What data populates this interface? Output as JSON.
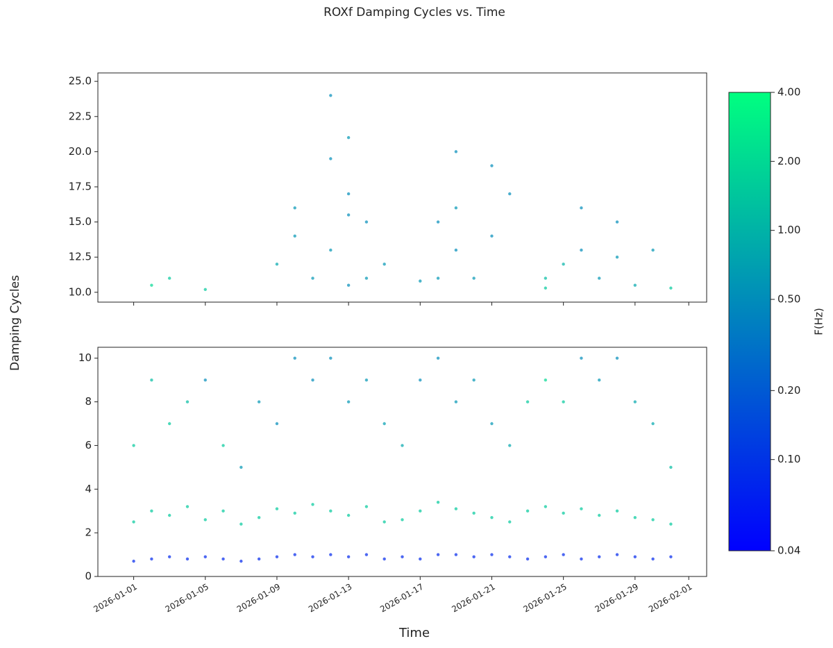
{
  "chart_data": {
    "type": "scatter",
    "title": "ROXf Damping Cycles vs. Time",
    "ylabel": "Damping Cycles",
    "xlabel": "Time",
    "xlim": [
      "2025-12-30",
      "2026-02-02"
    ],
    "xticks": [
      "2026-01-01",
      "2026-01-05",
      "2026-01-09",
      "2026-01-13",
      "2026-01-17",
      "2026-01-21",
      "2026-01-25",
      "2026-01-29",
      "2026-02-01"
    ],
    "colorbar": {
      "label": "F(Hz)",
      "log": true,
      "lim": [
        0.04,
        4
      ],
      "colors": [
        "#0000ff",
        "#00ff80"
      ],
      "ticks": [
        0.04,
        {
          "value": 0.1,
          "label": "0.10"
        },
        {
          "value": 0.2,
          "label": "0.20"
        },
        {
          "value": 0.5,
          "label": "0.50"
        },
        {
          "value": 1,
          "label": "1.00"
        },
        {
          "value": 2,
          "label": "2.00"
        },
        {
          "value": 4,
          "label": "4.00"
        }
      ]
    },
    "panels": [
      {
        "ylim": [
          9.3,
          25.6
        ],
        "yticks": [
          {
            "value": 10,
            "label": "10.0"
          },
          12.5,
          {
            "value": 15,
            "label": "15.0"
          },
          17.5,
          {
            "value": 20,
            "label": "20.0"
          },
          22.5,
          {
            "value": 25,
            "label": "25.0"
          }
        ],
        "x": [
          "2026-01-02",
          "2026-01-03",
          "2026-01-05",
          "2026-01-09",
          "2026-01-10",
          "2026-01-10",
          "2026-01-11",
          "2026-01-12",
          "2026-01-12",
          "2026-01-12",
          "2026-01-13",
          "2026-01-13",
          "2026-01-13",
          "2026-01-13",
          "2026-01-14",
          "2026-01-14",
          "2026-01-15",
          "2026-01-17",
          "2026-01-18",
          "2026-01-18",
          "2026-01-19",
          "2026-01-19",
          "2026-01-19",
          "2026-01-20",
          "2026-01-21",
          "2026-01-21",
          "2026-01-22",
          "2026-01-24",
          "2026-01-24",
          "2026-01-25",
          "2026-01-26",
          "2026-01-26",
          "2026-01-27",
          "2026-01-28",
          "2026-01-28",
          "2026-01-29",
          "2026-01-30",
          "2026-01-31"
        ],
        "y": [
          10.5,
          11,
          10.2,
          12,
          14,
          16,
          11,
          19.5,
          13,
          24,
          21,
          17,
          10.5,
          15.5,
          15,
          11,
          12,
          10.8,
          15,
          11,
          13,
          20,
          16,
          11,
          19,
          14,
          17,
          11,
          10.3,
          12,
          16,
          13,
          11,
          15,
          12.5,
          10.5,
          13,
          10.3
        ],
        "f": [
          2,
          1.5,
          1.5,
          0.8,
          0.6,
          0.6,
          0.6,
          0.5,
          0.6,
          0.5,
          0.6,
          0.5,
          0.5,
          0.5,
          0.5,
          0.6,
          0.6,
          0.6,
          0.5,
          0.6,
          0.5,
          0.5,
          0.6,
          0.6,
          0.5,
          0.5,
          0.5,
          1.2,
          1.5,
          1,
          0.5,
          0.5,
          0.6,
          0.5,
          0.6,
          0.8,
          0.6,
          1.5
        ]
      },
      {
        "ylim": [
          0,
          10.5
        ],
        "yticks": [
          0,
          2,
          4,
          6,
          8,
          10
        ],
        "x": [
          "2026-01-01",
          "2026-01-01",
          "2026-01-01",
          "2026-01-02",
          "2026-01-02",
          "2026-01-02",
          "2026-01-03",
          "2026-01-03",
          "2026-01-03",
          "2026-01-04",
          "2026-01-04",
          "2026-01-04",
          "2026-01-05",
          "2026-01-05",
          "2026-01-05",
          "2026-01-06",
          "2026-01-06",
          "2026-01-06",
          "2026-01-07",
          "2026-01-07",
          "2026-01-07",
          "2026-01-08",
          "2026-01-08",
          "2026-01-08",
          "2026-01-09",
          "2026-01-09",
          "2026-01-09",
          "2026-01-10",
          "2026-01-10",
          "2026-01-10",
          "2026-01-11",
          "2026-01-11",
          "2026-01-11",
          "2026-01-12",
          "2026-01-12",
          "2026-01-12",
          "2026-01-13",
          "2026-01-13",
          "2026-01-13",
          "2026-01-14",
          "2026-01-14",
          "2026-01-14",
          "2026-01-15",
          "2026-01-15",
          "2026-01-15",
          "2026-01-16",
          "2026-01-16",
          "2026-01-16",
          "2026-01-17",
          "2026-01-17",
          "2026-01-17",
          "2026-01-18",
          "2026-01-18",
          "2026-01-18",
          "2026-01-19",
          "2026-01-19",
          "2026-01-19",
          "2026-01-20",
          "2026-01-20",
          "2026-01-20",
          "2026-01-21",
          "2026-01-21",
          "2026-01-21",
          "2026-01-22",
          "2026-01-22",
          "2026-01-22",
          "2026-01-23",
          "2026-01-23",
          "2026-01-23",
          "2026-01-24",
          "2026-01-24",
          "2026-01-24",
          "2026-01-25",
          "2026-01-25",
          "2026-01-25",
          "2026-01-26",
          "2026-01-26",
          "2026-01-26",
          "2026-01-27",
          "2026-01-27",
          "2026-01-27",
          "2026-01-28",
          "2026-01-28",
          "2026-01-28",
          "2026-01-29",
          "2026-01-29",
          "2026-01-29",
          "2026-01-30",
          "2026-01-30",
          "2026-01-30",
          "2026-01-31",
          "2026-01-31",
          "2026-01-31"
        ],
        "y": [
          0.7,
          2.5,
          6,
          0.8,
          3,
          9,
          0.9,
          2.8,
          7,
          0.8,
          3.2,
          8,
          0.9,
          2.6,
          9,
          0.8,
          3,
          6,
          0.7,
          2.4,
          5,
          0.8,
          2.7,
          8,
          0.9,
          3.1,
          7,
          1,
          2.9,
          10,
          0.9,
          3.3,
          9,
          1,
          3,
          10,
          0.9,
          2.8,
          8,
          1,
          3.2,
          9,
          0.8,
          2.5,
          7,
          0.9,
          2.6,
          6,
          0.8,
          3,
          9,
          1,
          3.4,
          10,
          1,
          3.1,
          8,
          0.9,
          2.9,
          9,
          1,
          2.7,
          7,
          0.9,
          2.5,
          6,
          0.8,
          3,
          8,
          0.9,
          3.2,
          9,
          1,
          2.9,
          8,
          0.8,
          3.1,
          10,
          0.9,
          2.8,
          9,
          1,
          3,
          10,
          0.9,
          2.7,
          8,
          0.8,
          2.6,
          7,
          0.9,
          2.4,
          5
        ],
        "f": [
          0.08,
          1.5,
          1.5,
          0.08,
          1.5,
          1.2,
          0.08,
          1.5,
          1.5,
          0.08,
          1.5,
          1.2,
          0.08,
          1.5,
          0.5,
          0.08,
          1.5,
          1.5,
          0.08,
          1.5,
          0.6,
          0.08,
          1.5,
          0.6,
          0.08,
          1.5,
          0.5,
          0.08,
          1.5,
          0.5,
          0.08,
          1.5,
          0.5,
          0.08,
          1.5,
          0.5,
          0.08,
          1.5,
          0.6,
          0.08,
          1.5,
          0.6,
          0.08,
          1.5,
          0.7,
          0.08,
          1.5,
          0.8,
          0.08,
          1.5,
          0.5,
          0.08,
          1.5,
          0.5,
          0.08,
          1.5,
          0.6,
          0.08,
          1.5,
          0.6,
          0.08,
          1.5,
          0.6,
          0.08,
          1.5,
          0.8,
          0.08,
          1.5,
          1.5,
          0.08,
          1.5,
          2,
          0.08,
          1.5,
          1.5,
          0.08,
          1.5,
          0.5,
          0.08,
          1.5,
          0.6,
          0.08,
          1.5,
          0.5,
          0.08,
          1.5,
          0.8,
          0.08,
          1.5,
          0.8,
          0.08,
          1.5,
          1.2
        ]
      }
    ]
  }
}
